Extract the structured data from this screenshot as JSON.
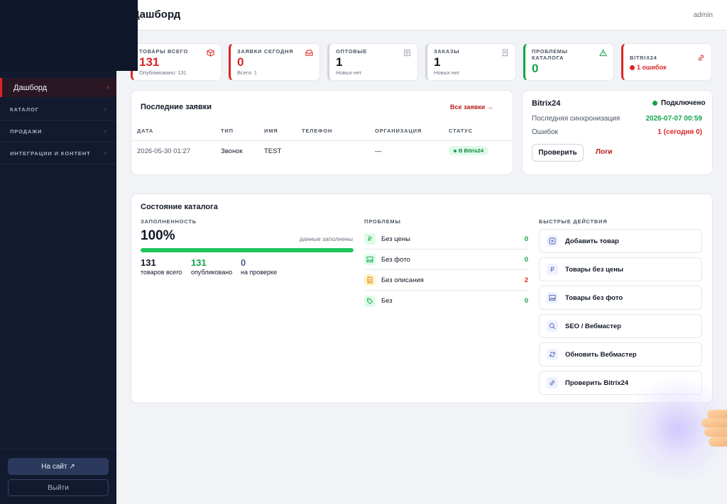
{
  "header": {
    "title": "Дашборд",
    "user": "admin"
  },
  "sidebar": {
    "active_item": "Дашборд",
    "groups": [
      "Каталог",
      "Продажи",
      "Интеграции и контент"
    ],
    "site_button": "На сайт ↗",
    "logout_button": "Выйти"
  },
  "stats": {
    "products": {
      "label": "Товары всего",
      "value": "131",
      "sub": "Опубликовано: 131"
    },
    "requests": {
      "label": "Заявки сегодня",
      "value": "0",
      "sub": "Всего: 1"
    },
    "wholesale": {
      "label": "Оптовые",
      "value": "1",
      "sub": "Новых нет"
    },
    "orders": {
      "label": "Заказы",
      "value": "1",
      "sub": "Новых нет"
    },
    "catalog_problems": {
      "label": "Проблемы каталога",
      "value": "0"
    },
    "bitrix": {
      "label": "Bitrix24",
      "errors": "1 ошибок"
    }
  },
  "recent_requests": {
    "title": "Последние заявки",
    "all_link": "Все заявки →",
    "columns": [
      "Дата",
      "Тип",
      "Имя",
      "Телефон",
      "Организация",
      "Статус"
    ],
    "rows": [
      {
        "date": "2026-05-30 01:27",
        "type": "Звонок",
        "name": "TEST",
        "phone": "",
        "org": "—",
        "status": "В Bitrix24"
      }
    ]
  },
  "bitrix_panel": {
    "title": "Bitrix24",
    "status": "Подключено",
    "last_sync_label": "Последняя синхронизация",
    "last_sync_value": "2026-07-07 00:59",
    "errors_label": "Ошибок",
    "errors_value": "1 (сегодня 0)",
    "check_button": "Проверить",
    "logs_link": "Логи",
    "colors": {
      "ok": "#16a34a",
      "error": "#dc2626"
    }
  },
  "catalog_state": {
    "title": "Состояние каталога",
    "fill_label": "Заполненность",
    "fill_percent": "100%",
    "fill_fraction": 1.0,
    "fill_note": "данные заполнены",
    "metrics": [
      {
        "value": "131",
        "label": "товаров всего"
      },
      {
        "value": "131",
        "label": "опубликовано"
      },
      {
        "value": "0",
        "label": "на проверке"
      }
    ],
    "problems_label": "Проблемы",
    "problems": [
      {
        "icon": "ruble-icon",
        "label": "Без цены",
        "value": "0"
      },
      {
        "icon": "image-icon",
        "label": "Без фото",
        "value": "0"
      },
      {
        "icon": "document-icon",
        "label": "Без описания",
        "value": "2"
      },
      {
        "icon": "tag-icon",
        "label": "Без",
        "value": "0"
      }
    ],
    "quick_label": "Быстрые действия",
    "quick_actions": [
      {
        "icon": "plus-square-icon",
        "label": "Добавить товар"
      },
      {
        "icon": "ruble-icon",
        "label": "Товары без цены"
      },
      {
        "icon": "image-icon",
        "label": "Товары без фото"
      },
      {
        "icon": "search-icon",
        "label": "SEO / Вебмастер"
      },
      {
        "icon": "refresh-icon",
        "label": "Обновить Вебмастер"
      },
      {
        "icon": "link-icon",
        "label": "Проверить Bitrix24"
      }
    ]
  }
}
